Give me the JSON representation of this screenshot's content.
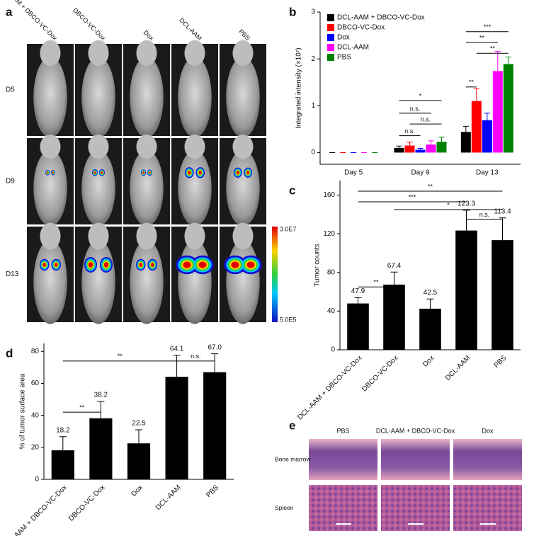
{
  "panel_a": {
    "letter": "a",
    "columns": [
      "DCL-AAM + DBCO-VC-Dox",
      "DBCO-VC-Dox",
      "Dox",
      "DCL-AAM",
      "PBS"
    ],
    "rows": [
      "D5",
      "D9",
      "D13"
    ],
    "colorbar_max": "3.0E7",
    "colorbar_min": "5.0E5"
  },
  "panel_e": {
    "letter": "e",
    "columns": [
      "PBS",
      "DCL-AAM + DBCO-VC-Dox",
      "Dox"
    ],
    "rows": [
      "Bone marrow",
      "Spleen"
    ]
  },
  "chart_data": [
    {
      "type": "grouped-bar",
      "letter": "b",
      "y_label": "Integrated intensity (×10⁷)",
      "categories": [
        "Day 5",
        "Day 9",
        "Day 13"
      ],
      "series": [
        {
          "name": "DCL-AAM + DBCO-VC-Dox",
          "color": "#000000",
          "values": [
            0,
            0.1,
            0.44
          ],
          "errors": [
            0,
            0.04,
            0.12
          ]
        },
        {
          "name": "DBCO-VC-Dox",
          "color": "#ff0000",
          "values": [
            0,
            0.15,
            1.1
          ],
          "errors": [
            0,
            0.07,
            0.27
          ]
        },
        {
          "name": "Dox",
          "color": "#0000ff",
          "values": [
            0,
            0.06,
            0.69
          ],
          "errors": [
            0,
            0.03,
            0.15
          ]
        },
        {
          "name": "DCL-AAM",
          "color": "#ff00ff",
          "values": [
            0,
            0.17,
            1.74
          ],
          "errors": [
            0,
            0.08,
            0.42
          ]
        },
        {
          "name": "PBS",
          "color": "#008000",
          "values": [
            0,
            0.23,
            1.89
          ],
          "errors": [
            0,
            0.1,
            0.15
          ]
        }
      ],
      "ylim": [
        -0.25,
        3
      ],
      "yticks": [
        0,
        1,
        2,
        3
      ],
      "legend": "top-left",
      "annotations": [
        "*",
        "n.s.",
        "n.s.",
        "n.s.",
        "***",
        "**",
        "**",
        "**"
      ]
    },
    {
      "type": "bar",
      "letter": "c",
      "y_label": "Tumor counts",
      "categories": [
        "DCL-AAM + DBCO-VC-Dox",
        "DBCO-VC-Dox",
        "Dox",
        "DCL-AAM",
        "PBS"
      ],
      "values": [
        47.9,
        67.4,
        42.5,
        123.3,
        113.4
      ],
      "errors": [
        6,
        13,
        10,
        21,
        23
      ],
      "color": "#000000",
      "ylim": [
        0,
        175
      ],
      "yticks": [
        0,
        40,
        80,
        120,
        160
      ],
      "annotations": [
        "**",
        "***",
        "*",
        "n.s.",
        "**"
      ]
    },
    {
      "type": "bar",
      "letter": "d",
      "y_label": "% of tumor surface area",
      "categories": [
        "DCL-AAM + DBCO-VC-Dox",
        "DBCO-VC-Dox",
        "Dox",
        "DCL-AAM",
        "PBS"
      ],
      "values": [
        18.2,
        38.2,
        22.5,
        64.1,
        67
      ],
      "value_labels": [
        "18.2",
        "38.2",
        "22.5",
        "64.1",
        "67.0"
      ],
      "errors": [
        8.5,
        10.5,
        8.5,
        13.5,
        11.5
      ],
      "color": "#000000",
      "ylim": [
        0,
        85
      ],
      "yticks": [
        0,
        20,
        40,
        60,
        80
      ],
      "annotations": [
        "**",
        "n.s.",
        "**"
      ]
    }
  ]
}
